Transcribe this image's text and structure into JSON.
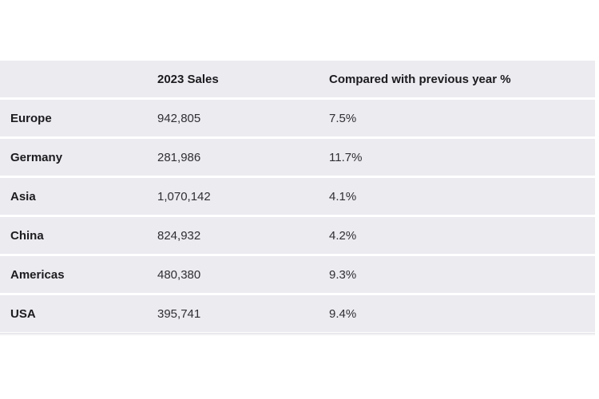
{
  "table": {
    "headers": {
      "region": "",
      "sales": "2023 Sales",
      "change": "Compared with previous year %"
    },
    "rows": [
      {
        "region": "Europe",
        "sales": "942,805",
        "change": "7.5%"
      },
      {
        "region": "Germany",
        "sales": "281,986",
        "change": "11.7%"
      },
      {
        "region": "Asia",
        "sales": "1,070,142",
        "change": "4.1%"
      },
      {
        "region": "China",
        "sales": "824,932",
        "change": "4.2%"
      },
      {
        "region": "Americas",
        "sales": "480,380",
        "change": "9.3%"
      },
      {
        "region": "USA",
        "sales": "395,741",
        "change": "9.4%"
      }
    ]
  },
  "colors": {
    "row_background": "#ebebf0",
    "page_background": "#ffffff",
    "text": "#2f2f33"
  }
}
